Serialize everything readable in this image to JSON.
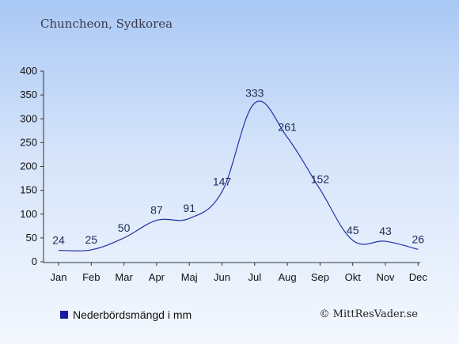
{
  "page": {
    "title": "Chuncheon, Sydkorea",
    "copyright": "© MittResVader.se"
  },
  "legend": {
    "label": "Nederbördsmängd i mm",
    "swatch_color": "#1a1aaa"
  },
  "chart_data": {
    "type": "line",
    "title": "Chuncheon, Sydkorea",
    "xlabel": "",
    "ylabel": "",
    "categories": [
      "Jan",
      "Feb",
      "Mar",
      "Apr",
      "Maj",
      "Jun",
      "Jul",
      "Aug",
      "Sep",
      "Okt",
      "Nov",
      "Dec"
    ],
    "series": [
      {
        "name": "Nederbördsmängd i mm",
        "values": [
          24,
          25,
          50,
          87,
          91,
          147,
          333,
          261,
          152,
          45,
          43,
          26
        ],
        "color": "#2233aa"
      }
    ],
    "ylim": [
      0,
      400
    ],
    "yticks": [
      0,
      50,
      100,
      150,
      200,
      250,
      300,
      350,
      400
    ],
    "grid": false,
    "legend_position": "bottom-left",
    "data_labels": true
  }
}
